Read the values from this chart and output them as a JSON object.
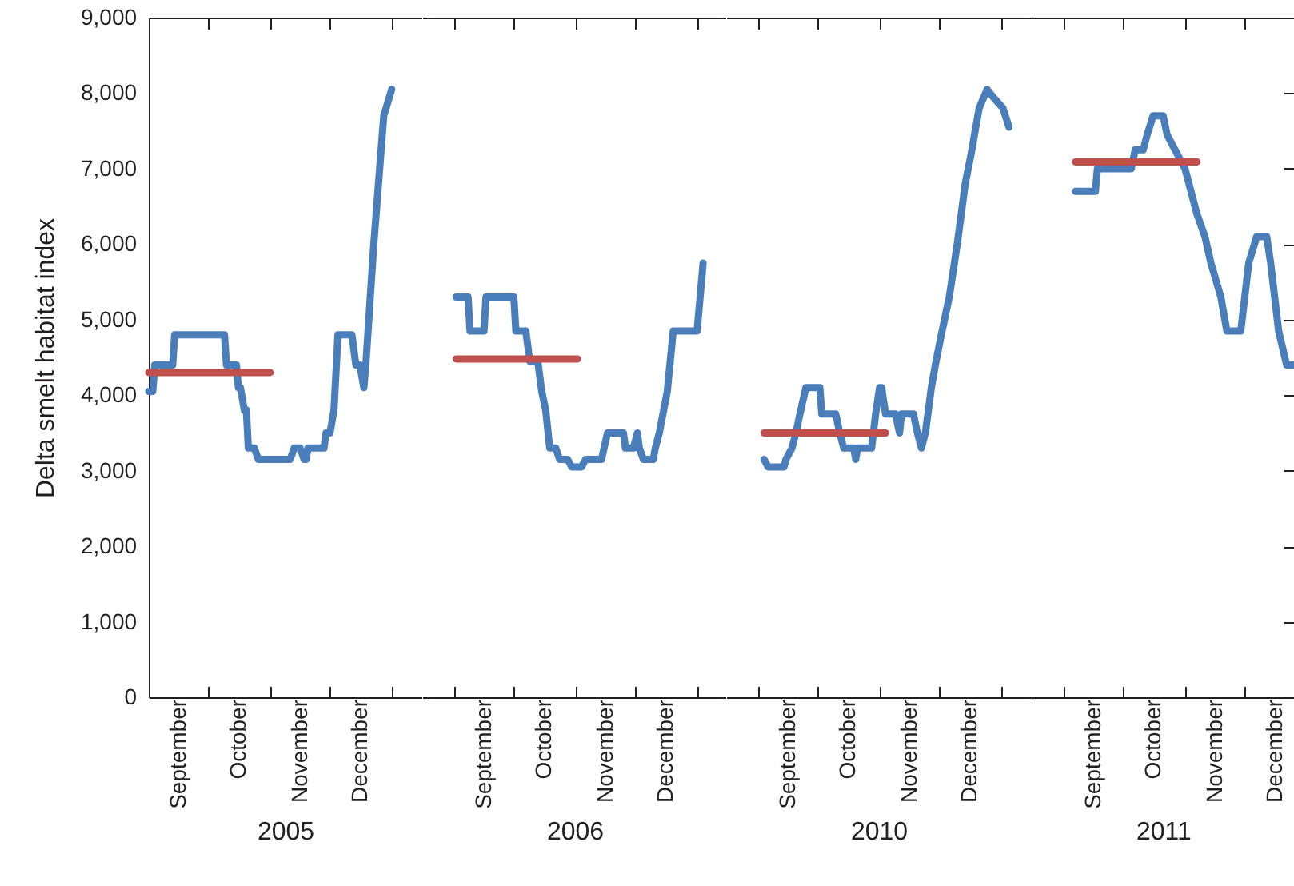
{
  "chart_data": [
    {
      "type": "line",
      "xlabel": "2005",
      "ylabel": "Delta smelt habitat index",
      "xlim": [
        "2005-09-01",
        "2006-01-16"
      ],
      "ylim": [
        0,
        9000
      ],
      "xticks": [
        {
          "value": "2005-09-16",
          "label": "September"
        },
        {
          "value": "2005-10-01",
          "label": null
        },
        {
          "value": "2005-10-16",
          "label": "October"
        },
        {
          "value": "2005-11-01",
          "label": null
        },
        {
          "value": "2005-11-16",
          "label": "November"
        },
        {
          "value": "2005-12-01",
          "label": null
        },
        {
          "value": "2005-12-16",
          "label": "December"
        },
        {
          "value": "2006-01-01",
          "label": null
        }
      ],
      "yticks": [
        0,
        {
          "value": 1000,
          "label": "1,000"
        },
        {
          "value": 2000,
          "label": "2,000"
        },
        {
          "value": 3000,
          "label": "3,000"
        },
        {
          "value": 4000,
          "label": "4,000"
        },
        {
          "value": 5000,
          "label": "5,000"
        },
        {
          "value": 6000,
          "label": "6,000"
        },
        {
          "value": 7000,
          "label": "7,000"
        },
        {
          "value": 8000,
          "label": "8,000"
        },
        {
          "value": 9000,
          "label": "9,000"
        }
      ],
      "series": [
        {
          "color": "#4a7ebb",
          "x": [
            "2005-09-01",
            "2005-09-03",
            "2005-09-04",
            "2005-09-13",
            "2005-09-14",
            "2005-10-09",
            "2005-10-10",
            "2005-10-15",
            "2005-10-16",
            "2005-10-17",
            "2005-10-19",
            "2005-10-20",
            "2005-10-21",
            "2005-10-24",
            "2005-10-26",
            "2005-11-11",
            "2005-11-13",
            "2005-11-16",
            "2005-11-18",
            "2005-11-19",
            "2005-11-20",
            "2005-11-28",
            "2005-11-29",
            "2005-12-01",
            "2005-12-03",
            "2005-12-05",
            "2005-12-12",
            "2005-12-14",
            "2005-12-16",
            "2005-12-18",
            "2005-12-19",
            "2005-12-20",
            "2005-12-23",
            "2005-12-28",
            "2006-01-01"
          ],
          "values": [
            4050,
            4050,
            4400,
            4400,
            4800,
            4800,
            4400,
            4400,
            4100,
            4100,
            3800,
            3800,
            3300,
            3300,
            3150,
            3150,
            3300,
            3300,
            3150,
            3150,
            3300,
            3300,
            3500,
            3500,
            3800,
            4800,
            4800,
            4400,
            4400,
            4100,
            4400,
            4800,
            6000,
            7700,
            8050
          ]
        },
        {
          "color": "#c0504d",
          "x": [
            "2005-09-01",
            "2005-11-01"
          ],
          "values": [
            4300,
            4300
          ]
        }
      ]
    },
    {
      "type": "line",
      "xlabel": "2006",
      "xlim": [
        "2006-08-16",
        "2007-01-16"
      ],
      "ylim": [
        0,
        9000
      ],
      "tick_labels": "x",
      "xticks": [
        {
          "value": "2006-09-01",
          "label": null
        },
        {
          "value": "2006-09-16",
          "label": "September"
        },
        {
          "value": "2006-10-01",
          "label": null
        },
        {
          "value": "2006-10-16",
          "label": "October"
        },
        {
          "value": "2006-11-01",
          "label": null
        },
        {
          "value": "2006-11-16",
          "label": "November"
        },
        {
          "value": "2006-12-01",
          "label": null
        },
        {
          "value": "2006-12-16",
          "label": "December"
        },
        {
          "value": "2007-01-01",
          "label": null
        }
      ],
      "yticks": [
        0,
        1000,
        2000,
        3000,
        4000,
        5000,
        6000,
        7000,
        8000,
        9000
      ],
      "series": [
        {
          "color": "#4a7ebb",
          "x": [
            "2006-09-02",
            "2006-09-08",
            "2006-09-09",
            "2006-09-16",
            "2006-09-17",
            "2006-10-01",
            "2006-10-02",
            "2006-10-07",
            "2006-10-09",
            "2006-10-13",
            "2006-10-15",
            "2006-10-17",
            "2006-10-19",
            "2006-10-22",
            "2006-10-24",
            "2006-10-28",
            "2006-10-30",
            "2006-11-04",
            "2006-11-06",
            "2006-11-14",
            "2006-11-17",
            "2006-11-25",
            "2006-11-26",
            "2006-11-30",
            "2006-12-02",
            "2006-12-03",
            "2006-12-05",
            "2006-12-10",
            "2006-12-11",
            "2006-12-13",
            "2006-12-17",
            "2006-12-20",
            "2007-01-01",
            "2007-01-04"
          ],
          "values": [
            5300,
            5300,
            4850,
            4850,
            5300,
            5300,
            4850,
            4850,
            4450,
            4450,
            4050,
            3800,
            3300,
            3300,
            3150,
            3150,
            3050,
            3050,
            3150,
            3150,
            3500,
            3500,
            3300,
            3300,
            3500,
            3300,
            3150,
            3150,
            3300,
            3500,
            4050,
            4850,
            4850,
            5750
          ]
        },
        {
          "color": "#c0504d",
          "x": [
            "2006-09-02",
            "2006-11-02"
          ],
          "values": [
            4480,
            4480
          ]
        }
      ]
    },
    {
      "type": "line",
      "xlabel": "2010",
      "xlim": [
        "2010-08-16",
        "2011-01-16"
      ],
      "ylim": [
        0,
        9000
      ],
      "tick_labels": "x",
      "xticks": [
        {
          "value": "2010-09-01",
          "label": null
        },
        {
          "value": "2010-09-16",
          "label": "September"
        },
        {
          "value": "2010-10-01",
          "label": null
        },
        {
          "value": "2010-10-16",
          "label": "October"
        },
        {
          "value": "2010-11-01",
          "label": null
        },
        {
          "value": "2010-11-16",
          "label": "November"
        },
        {
          "value": "2010-12-01",
          "label": null
        },
        {
          "value": "2010-12-16",
          "label": "December"
        },
        {
          "value": "2011-01-01",
          "label": null
        }
      ],
      "yticks": [
        0,
        1000,
        2000,
        3000,
        4000,
        5000,
        6000,
        7000,
        8000,
        9000
      ],
      "series": [
        {
          "color": "#4a7ebb",
          "x": [
            "2010-09-04",
            "2010-09-06",
            "2010-09-14",
            "2010-09-15",
            "2010-09-18",
            "2010-09-20",
            "2010-09-22",
            "2010-09-25",
            "2010-10-02",
            "2010-10-03",
            "2010-10-10",
            "2010-10-12",
            "2010-10-14",
            "2010-10-19",
            "2010-10-20",
            "2010-10-21",
            "2010-10-28",
            "2010-10-30",
            "2010-11-01",
            "2010-11-02",
            "2010-11-04",
            "2010-11-09",
            "2010-11-11",
            "2010-11-12",
            "2010-11-18",
            "2010-11-20",
            "2010-11-22",
            "2010-11-24",
            "2010-11-27",
            "2010-11-29",
            "2010-12-02",
            "2010-12-06",
            "2010-12-10",
            "2010-12-14",
            "2010-12-17",
            "2010-12-21",
            "2010-12-25",
            "2010-12-28",
            "2011-01-02",
            "2011-01-05"
          ],
          "values": [
            3150,
            3050,
            3050,
            3150,
            3300,
            3500,
            3750,
            4100,
            4100,
            3750,
            3750,
            3500,
            3300,
            3300,
            3150,
            3300,
            3300,
            3750,
            4100,
            4100,
            3750,
            3750,
            3500,
            3750,
            3750,
            3500,
            3300,
            3500,
            4100,
            4400,
            4800,
            5300,
            6000,
            6800,
            7200,
            7800,
            8050,
            7950,
            7800,
            7550
          ]
        },
        {
          "color": "#c0504d",
          "x": [
            "2010-09-04",
            "2010-11-04"
          ],
          "values": [
            3500,
            3500
          ]
        }
      ]
    },
    {
      "type": "line",
      "xlabel": "2011",
      "xlim": [
        "2011-08-16",
        "2011-12-26"
      ],
      "ylim": [
        0,
        9000
      ],
      "tick_labels": "x",
      "xticks": [
        {
          "value": "2011-09-01",
          "label": null
        },
        {
          "value": "2011-09-16",
          "label": "September"
        },
        {
          "value": "2011-10-01",
          "label": null
        },
        {
          "value": "2011-10-16",
          "label": "October"
        },
        {
          "value": "2011-11-01",
          "label": null
        },
        {
          "value": "2011-11-16",
          "label": "November"
        },
        {
          "value": "2011-12-01",
          "label": null
        },
        {
          "value": "2011-12-16",
          "label": "December"
        }
      ],
      "yticks": [
        0,
        1000,
        2000,
        3000,
        4000,
        5000,
        6000,
        7000,
        8000,
        9000
      ],
      "series": [
        {
          "color": "#4a7ebb",
          "x": [
            "2011-09-07",
            "2011-09-17",
            "2011-09-18",
            "2011-10-05",
            "2011-10-07",
            "2011-10-11",
            "2011-10-13",
            "2011-10-16",
            "2011-10-21",
            "2011-10-23",
            "2011-10-27",
            "2011-11-01",
            "2011-11-04",
            "2011-11-07",
            "2011-11-11",
            "2011-11-14",
            "2011-11-19",
            "2011-11-22",
            "2011-11-29",
            "2011-12-01",
            "2011-12-03",
            "2011-12-07",
            "2011-12-12",
            "2011-12-14",
            "2011-12-16",
            "2011-12-18",
            "2011-12-22",
            "2011-12-26"
          ],
          "values": [
            6700,
            6700,
            7000,
            7000,
            7250,
            7250,
            7450,
            7700,
            7700,
            7450,
            7250,
            7000,
            6700,
            6400,
            6100,
            5750,
            5300,
            4850,
            4850,
            5300,
            5750,
            6100,
            6100,
            5750,
            5300,
            4850,
            4400,
            4400
          ]
        },
        {
          "color": "#c0504d",
          "x": [
            "2011-09-07",
            "2011-11-07"
          ],
          "values": [
            7090,
            7090
          ]
        }
      ]
    }
  ]
}
